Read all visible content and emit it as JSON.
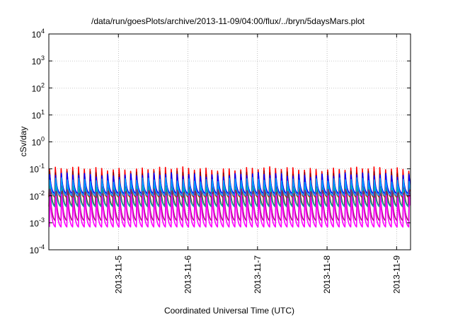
{
  "chart_data": {
    "type": "line",
    "title": "/data/run/goesPlots/archive/2013-11-09/04:00/flux/../bryn/5daysMars.plot",
    "xlabel": "Coordinated Universal Time (UTC)",
    "ylabel": "cSv/day",
    "yscale": "log",
    "ylim": [
      0.0001,
      10000
    ],
    "y_ticks": [
      {
        "exp": "4"
      },
      {
        "exp": "3"
      },
      {
        "exp": "2"
      },
      {
        "exp": "1"
      },
      {
        "exp": "0"
      },
      {
        "exp": "-1"
      },
      {
        "exp": "-2"
      },
      {
        "exp": "-3"
      },
      {
        "exp": "-4"
      }
    ],
    "y_tick_base": "10",
    "xlim_days": [
      4.0,
      9.2
    ],
    "x_ticks": [
      {
        "day": 5,
        "label": "2013-11-5"
      },
      {
        "day": 6,
        "label": "2013-11-6"
      },
      {
        "day": 7,
        "label": "2013-11-7"
      },
      {
        "day": 8,
        "label": "2013-11-8"
      },
      {
        "day": 9,
        "label": "2013-11-9"
      }
    ],
    "grid": true,
    "pattern": {
      "period_days": 0.0833,
      "description_note": "periodic sawtooth curves, ~12 per day"
    },
    "series": [
      {
        "color": "#ff0000",
        "peak": 0.1,
        "trough": 0.009
      },
      {
        "color": "#8b0000",
        "peak": 0.07,
        "trough": 0.004
      },
      {
        "color": "#0000ff",
        "peak": 0.06,
        "trough": 0.012
      },
      {
        "color": "#00a0ff",
        "peak": 0.04,
        "trough": 0.01
      },
      {
        "color": "#00b0b0",
        "peak": 0.02,
        "trough": 0.004
      },
      {
        "color": "#9b1b6b",
        "peak": 0.015,
        "trough": 0.0012
      },
      {
        "color": "#ff00ff",
        "peak": 0.01,
        "trough": 0.0007
      }
    ]
  }
}
